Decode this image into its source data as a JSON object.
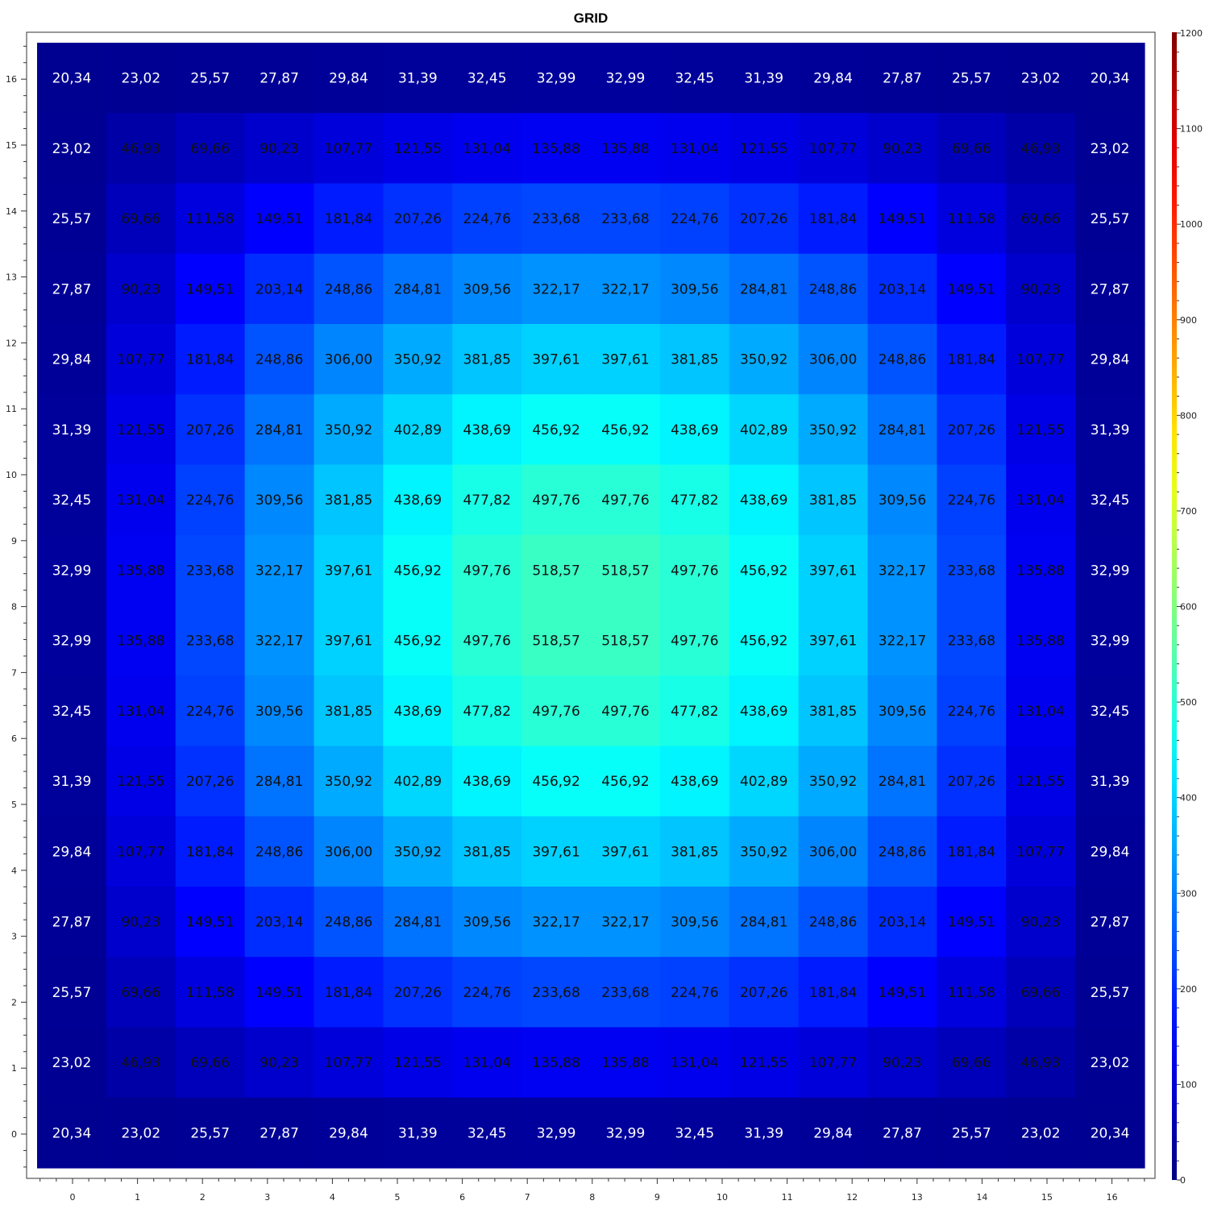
{
  "chart_data": {
    "type": "heatmap",
    "title": "GRID",
    "x_ticks": [
      "0",
      "1",
      "2",
      "3",
      "4",
      "5",
      "6",
      "7",
      "8",
      "9",
      "10",
      "11",
      "12",
      "13",
      "14",
      "15",
      "16"
    ],
    "y_ticks": [
      "0",
      "1",
      "2",
      "3",
      "4",
      "5",
      "6",
      "7",
      "8",
      "9",
      "10",
      "11",
      "12",
      "13",
      "14",
      "15",
      "16"
    ],
    "colorbar": {
      "min": 0,
      "max": 1200,
      "ticks": [
        "0",
        "100",
        "200",
        "300",
        "400",
        "500",
        "600",
        "700",
        "800",
        "900",
        "1000",
        "1100",
        "1200"
      ],
      "colormap": "jet"
    },
    "rows_top_to_bottom": [
      [
        "20,34",
        "23,02",
        "25,57",
        "27,87",
        "29,84",
        "31,39",
        "32,45",
        "32,99",
        "32,99",
        "32,45",
        "31,39",
        "29,84",
        "27,87",
        "25,57",
        "23,02",
        "20,34"
      ],
      [
        "23,02",
        "46,93",
        "69,66",
        "90,23",
        "107,77",
        "121,55",
        "131,04",
        "135,88",
        "135,88",
        "131,04",
        "121,55",
        "107,77",
        "90,23",
        "69,66",
        "46,93",
        "23,02"
      ],
      [
        "25,57",
        "69,66",
        "111,58",
        "149,51",
        "181,84",
        "207,26",
        "224,76",
        "233,68",
        "233,68",
        "224,76",
        "207,26",
        "181,84",
        "149,51",
        "111,58",
        "69,66",
        "25,57"
      ],
      [
        "27,87",
        "90,23",
        "149,51",
        "203,14",
        "248,86",
        "284,81",
        "309,56",
        "322,17",
        "322,17",
        "309,56",
        "284,81",
        "248,86",
        "203,14",
        "149,51",
        "90,23",
        "27,87"
      ],
      [
        "29,84",
        "107,77",
        "181,84",
        "248,86",
        "306,00",
        "350,92",
        "381,85",
        "397,61",
        "397,61",
        "381,85",
        "350,92",
        "306,00",
        "248,86",
        "181,84",
        "107,77",
        "29,84"
      ],
      [
        "31,39",
        "121,55",
        "207,26",
        "284,81",
        "350,92",
        "402,89",
        "438,69",
        "456,92",
        "456,92",
        "438,69",
        "402,89",
        "350,92",
        "284,81",
        "207,26",
        "121,55",
        "31,39"
      ],
      [
        "32,45",
        "131,04",
        "224,76",
        "309,56",
        "381,85",
        "438,69",
        "477,82",
        "497,76",
        "497,76",
        "477,82",
        "438,69",
        "381,85",
        "309,56",
        "224,76",
        "131,04",
        "32,45"
      ],
      [
        "32,99",
        "135,88",
        "233,68",
        "322,17",
        "397,61",
        "456,92",
        "497,76",
        "518,57",
        "518,57",
        "497,76",
        "456,92",
        "397,61",
        "322,17",
        "233,68",
        "135,88",
        "32,99"
      ],
      [
        "32,99",
        "135,88",
        "233,68",
        "322,17",
        "397,61",
        "456,92",
        "497,76",
        "518,57",
        "518,57",
        "497,76",
        "456,92",
        "397,61",
        "322,17",
        "233,68",
        "135,88",
        "32,99"
      ],
      [
        "32,45",
        "131,04",
        "224,76",
        "309,56",
        "381,85",
        "438,69",
        "477,82",
        "497,76",
        "497,76",
        "477,82",
        "438,69",
        "381,85",
        "309,56",
        "224,76",
        "131,04",
        "32,45"
      ],
      [
        "31,39",
        "121,55",
        "207,26",
        "284,81",
        "350,92",
        "402,89",
        "438,69",
        "456,92",
        "456,92",
        "438,69",
        "402,89",
        "350,92",
        "284,81",
        "207,26",
        "121,55",
        "31,39"
      ],
      [
        "29,84",
        "107,77",
        "181,84",
        "248,86",
        "306,00",
        "350,92",
        "381,85",
        "397,61",
        "397,61",
        "381,85",
        "350,92",
        "306,00",
        "248,86",
        "181,84",
        "107,77",
        "29,84"
      ],
      [
        "27,87",
        "90,23",
        "149,51",
        "203,14",
        "248,86",
        "284,81",
        "309,56",
        "322,17",
        "322,17",
        "309,56",
        "284,81",
        "248,86",
        "203,14",
        "149,51",
        "90,23",
        "27,87"
      ],
      [
        "25,57",
        "69,66",
        "111,58",
        "149,51",
        "181,84",
        "207,26",
        "224,76",
        "233,68",
        "233,68",
        "224,76",
        "207,26",
        "181,84",
        "149,51",
        "111,58",
        "69,66",
        "25,57"
      ],
      [
        "23,02",
        "46,93",
        "69,66",
        "90,23",
        "107,77",
        "121,55",
        "131,04",
        "135,88",
        "135,88",
        "131,04",
        "121,55",
        "107,77",
        "90,23",
        "69,66",
        "46,93",
        "23,02"
      ],
      [
        "20,34",
        "23,02",
        "25,57",
        "27,87",
        "29,84",
        "31,39",
        "32,45",
        "32,99",
        "32,99",
        "32,45",
        "31,39",
        "29,84",
        "27,87",
        "25,57",
        "23,02",
        "20,34"
      ]
    ]
  }
}
